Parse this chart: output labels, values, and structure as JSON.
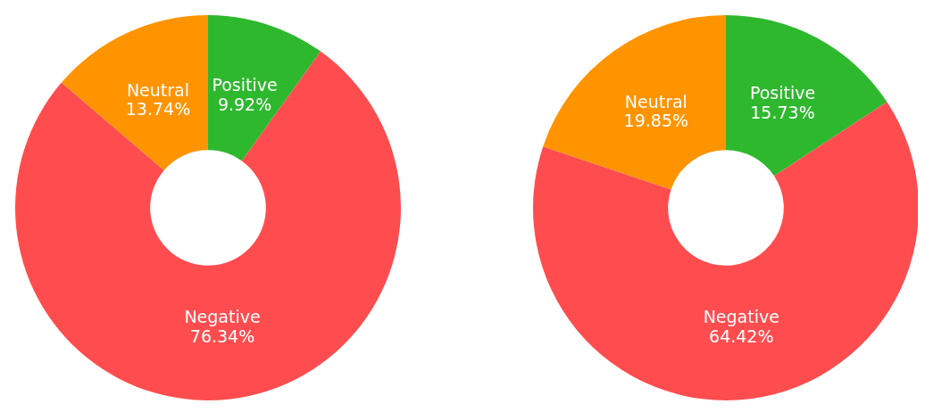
{
  "chart_data": [
    {
      "type": "donut",
      "categories": [
        "Positive",
        "Negative",
        "Neutral"
      ],
      "values": [
        9.92,
        76.34,
        13.74
      ],
      "colors": [
        "#2eb82e",
        "#ff4d4f",
        "#ff9400"
      ],
      "value_labels": [
        "9.92%",
        "76.34%",
        "13.74%"
      ]
    },
    {
      "type": "donut",
      "categories": [
        "Positive",
        "Negative",
        "Neutral"
      ],
      "values": [
        15.73,
        64.42,
        19.85
      ],
      "colors": [
        "#2eb82e",
        "#ff4d4f",
        "#ff9400"
      ],
      "value_labels": [
        "15.73%",
        "64.42%",
        "19.85%"
      ]
    }
  ]
}
